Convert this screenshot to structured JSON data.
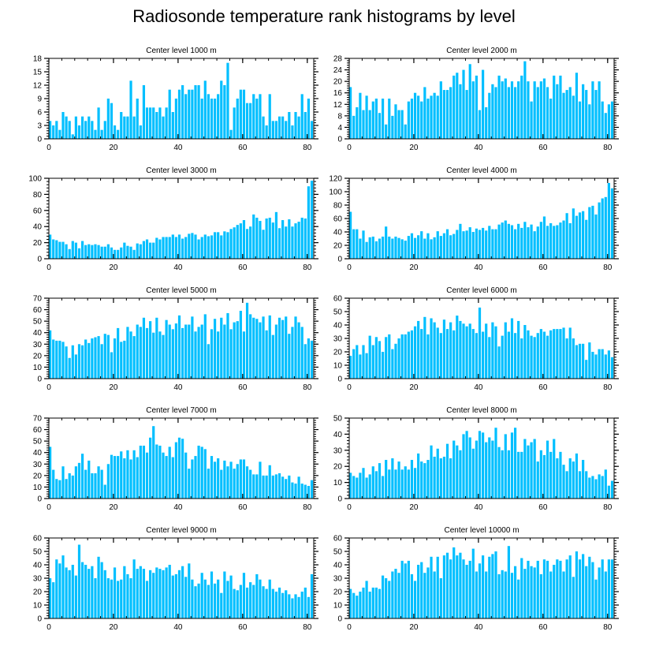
{
  "title": "Radiosonde temperature rank histograms by level",
  "colors": {
    "bar": "#00BFFF",
    "axis": "#000000",
    "background": "#FFFFFF"
  },
  "chart_data": [
    {
      "type": "bar",
      "title": "Center level 1000 m",
      "xlabel": "",
      "ylabel": "",
      "xlim": [
        0,
        82
      ],
      "ylim": [
        0,
        18
      ],
      "xticks": [
        0,
        20,
        40,
        60,
        80
      ],
      "yticks": [
        0,
        3,
        6,
        9,
        12,
        15,
        18
      ],
      "values": [
        4,
        3,
        4,
        2,
        6,
        5,
        4,
        1,
        5,
        3,
        5,
        4,
        5,
        4,
        2,
        7,
        2,
        4,
        9,
        8,
        3,
        2,
        6,
        5,
        5,
        13,
        5,
        9,
        3,
        12,
        7,
        7,
        7,
        6,
        7,
        5,
        7,
        11,
        6,
        9,
        11,
        12,
        10,
        11,
        11,
        12,
        12,
        9,
        13,
        10,
        9,
        9,
        10,
        13,
        12,
        17,
        2,
        7,
        9,
        11,
        11,
        8,
        8,
        10,
        9,
        10,
        5,
        3,
        10,
        4,
        4,
        5,
        5,
        4,
        6,
        3,
        6,
        5,
        10,
        6,
        9,
        4
      ]
    },
    {
      "type": "bar",
      "title": "Center level 2000 m",
      "xlabel": "",
      "ylabel": "",
      "xlim": [
        0,
        82
      ],
      "ylim": [
        0,
        28
      ],
      "xticks": [
        0,
        20,
        40,
        60,
        80
      ],
      "yticks": [
        0,
        4,
        8,
        12,
        16,
        20,
        24,
        28
      ],
      "values": [
        18,
        8,
        11,
        16,
        10,
        15,
        10,
        13,
        14,
        9,
        14,
        5,
        14,
        8,
        12,
        10,
        10,
        5,
        13,
        14,
        16,
        15,
        13,
        18,
        14,
        15,
        16,
        15,
        20,
        17,
        17,
        18,
        22,
        23,
        19,
        24,
        17,
        26,
        20,
        22,
        10,
        24,
        11,
        16,
        19,
        18,
        22,
        20,
        21,
        18,
        20,
        18,
        20,
        22,
        27,
        20,
        13,
        20,
        18,
        20,
        21,
        18,
        14,
        22,
        19,
        22,
        16,
        17,
        18,
        15,
        23,
        13,
        19,
        17,
        12,
        20,
        17,
        20,
        13,
        9,
        12,
        13
      ]
    },
    {
      "type": "bar",
      "title": "Center level 3000 m",
      "xlabel": "",
      "ylabel": "",
      "xlim": [
        0,
        82
      ],
      "ylim": [
        0,
        100
      ],
      "xticks": [
        0,
        20,
        40,
        60,
        80
      ],
      "yticks": [
        0,
        20,
        40,
        60,
        80,
        100
      ],
      "values": [
        30,
        24,
        23,
        21,
        21,
        18,
        12,
        22,
        20,
        13,
        22,
        17,
        18,
        17,
        18,
        17,
        15,
        15,
        18,
        14,
        11,
        11,
        14,
        20,
        16,
        15,
        11,
        19,
        18,
        22,
        24,
        20,
        20,
        26,
        24,
        27,
        27,
        27,
        30,
        27,
        30,
        25,
        27,
        31,
        32,
        30,
        24,
        27,
        30,
        28,
        29,
        33,
        33,
        29,
        34,
        33,
        37,
        39,
        42,
        44,
        48,
        37,
        40,
        55,
        51,
        47,
        36,
        50,
        51,
        45,
        58,
        38,
        48,
        40,
        49,
        40,
        44,
        46,
        51,
        50,
        90,
        97
      ]
    },
    {
      "type": "bar",
      "title": "Center level 4000 m",
      "xlabel": "",
      "ylabel": "",
      "xlim": [
        0,
        82
      ],
      "ylim": [
        0,
        120
      ],
      "xticks": [
        0,
        20,
        40,
        60,
        80
      ],
      "yticks": [
        0,
        20,
        40,
        60,
        80,
        100,
        120
      ],
      "values": [
        70,
        44,
        44,
        30,
        42,
        25,
        32,
        33,
        26,
        30,
        33,
        48,
        33,
        30,
        33,
        31,
        29,
        27,
        34,
        38,
        31,
        35,
        41,
        30,
        38,
        29,
        32,
        41,
        34,
        38,
        44,
        35,
        37,
        43,
        52,
        41,
        42,
        47,
        40,
        45,
        43,
        46,
        42,
        49,
        44,
        44,
        51,
        54,
        57,
        52,
        50,
        44,
        52,
        46,
        55,
        47,
        51,
        41,
        48,
        55,
        63,
        49,
        53,
        49,
        50,
        54,
        57,
        68,
        53,
        75,
        64,
        69,
        71,
        58,
        77,
        79,
        66,
        84,
        90,
        92,
        113,
        105
      ]
    },
    {
      "type": "bar",
      "title": "Center level 5000 m",
      "xlabel": "",
      "ylabel": "",
      "xlim": [
        0,
        82
      ],
      "ylim": [
        0,
        70
      ],
      "xticks": [
        0,
        20,
        40,
        60,
        80
      ],
      "yticks": [
        0,
        10,
        20,
        30,
        40,
        50,
        60,
        70
      ],
      "values": [
        42,
        34,
        33,
        33,
        32,
        28,
        18,
        29,
        21,
        30,
        29,
        34,
        31,
        35,
        36,
        37,
        30,
        39,
        38,
        23,
        35,
        44,
        32,
        33,
        45,
        41,
        37,
        47,
        45,
        53,
        44,
        50,
        40,
        53,
        41,
        38,
        51,
        47,
        43,
        48,
        55,
        44,
        47,
        47,
        54,
        41,
        45,
        47,
        56,
        30,
        43,
        52,
        41,
        53,
        47,
        57,
        43,
        49,
        50,
        59,
        41,
        66,
        56,
        53,
        52,
        49,
        54,
        42,
        55,
        38,
        47,
        53,
        51,
        54,
        39,
        45,
        54,
        49,
        45,
        30,
        35,
        33
      ]
    },
    {
      "type": "bar",
      "title": "Center level 6000 m",
      "xlabel": "",
      "ylabel": "",
      "xlim": [
        0,
        82
      ],
      "ylim": [
        0,
        60
      ],
      "xticks": [
        0,
        20,
        40,
        60,
        80
      ],
      "yticks": [
        0,
        10,
        20,
        30,
        40,
        50,
        60
      ],
      "values": [
        17,
        22,
        25,
        18,
        25,
        19,
        32,
        25,
        31,
        28,
        20,
        31,
        33,
        22,
        26,
        30,
        33,
        33,
        35,
        36,
        39,
        43,
        37,
        46,
        33,
        45,
        42,
        38,
        34,
        44,
        37,
        42,
        36,
        47,
        43,
        41,
        39,
        41,
        37,
        34,
        53,
        35,
        41,
        31,
        42,
        39,
        24,
        32,
        42,
        35,
        45,
        34,
        43,
        30,
        40,
        36,
        32,
        31,
        34,
        37,
        35,
        32,
        36,
        37,
        37,
        37,
        38,
        30,
        38,
        30,
        25,
        26,
        26,
        14,
        27,
        20,
        18,
        22,
        22,
        18,
        21,
        16
      ]
    },
    {
      "type": "bar",
      "title": "Center level 7000 m",
      "xlabel": "",
      "ylabel": "",
      "xlim": [
        0,
        82
      ],
      "ylim": [
        0,
        70
      ],
      "xticks": [
        0,
        20,
        40,
        60,
        80
      ],
      "yticks": [
        0,
        10,
        20,
        30,
        40,
        50,
        60,
        70
      ],
      "values": [
        45,
        25,
        17,
        16,
        28,
        17,
        22,
        20,
        28,
        31,
        39,
        25,
        33,
        22,
        22,
        28,
        25,
        12,
        30,
        38,
        37,
        37,
        41,
        35,
        42,
        34,
        42,
        36,
        46,
        46,
        40,
        53,
        63,
        47,
        46,
        40,
        37,
        45,
        36,
        49,
        53,
        52,
        40,
        26,
        34,
        37,
        46,
        45,
        43,
        26,
        37,
        32,
        35,
        25,
        33,
        28,
        32,
        26,
        30,
        34,
        34,
        28,
        25,
        21,
        21,
        32,
        20,
        20,
        29,
        20,
        21,
        22,
        19,
        17,
        20,
        14,
        13,
        19,
        13,
        12,
        11,
        16
      ]
    },
    {
      "type": "bar",
      "title": "Center level 8000 m",
      "xlabel": "",
      "ylabel": "",
      "xlim": [
        0,
        82
      ],
      "ylim": [
        0,
        50
      ],
      "xticks": [
        0,
        20,
        40,
        60,
        80
      ],
      "yticks": [
        0,
        10,
        20,
        30,
        40,
        50
      ],
      "values": [
        16,
        14,
        13,
        16,
        19,
        13,
        15,
        20,
        17,
        22,
        14,
        24,
        18,
        25,
        18,
        23,
        18,
        20,
        18,
        24,
        19,
        28,
        23,
        22,
        24,
        33,
        26,
        31,
        25,
        26,
        34,
        25,
        36,
        33,
        30,
        40,
        42,
        38,
        31,
        36,
        42,
        41,
        35,
        38,
        36,
        44,
        32,
        30,
        40,
        30,
        41,
        44,
        29,
        29,
        37,
        33,
        35,
        37,
        23,
        30,
        27,
        36,
        29,
        37,
        25,
        29,
        21,
        17,
        25,
        23,
        28,
        17,
        24,
        17,
        13,
        14,
        12,
        15,
        14,
        18,
        8,
        11
      ]
    },
    {
      "type": "bar",
      "title": "Center level 9000 m",
      "xlabel": "",
      "ylabel": "",
      "xlim": [
        0,
        82
      ],
      "ylim": [
        0,
        60
      ],
      "xticks": [
        0,
        20,
        40,
        60,
        80
      ],
      "yticks": [
        0,
        10,
        20,
        30,
        40,
        50,
        60
      ],
      "values": [
        30,
        27,
        44,
        41,
        47,
        38,
        36,
        40,
        32,
        55,
        42,
        40,
        37,
        39,
        30,
        46,
        42,
        36,
        30,
        29,
        38,
        28,
        29,
        39,
        33,
        30,
        44,
        37,
        39,
        37,
        28,
        36,
        34,
        38,
        37,
        36,
        38,
        40,
        32,
        33,
        36,
        39,
        31,
        41,
        29,
        24,
        26,
        34,
        29,
        25,
        35,
        26,
        29,
        19,
        35,
        28,
        32,
        22,
        21,
        25,
        34,
        23,
        27,
        25,
        33,
        29,
        24,
        22,
        29,
        22,
        20,
        23,
        19,
        21,
        18,
        15,
        18,
        16,
        20,
        23,
        16,
        33
      ]
    },
    {
      "type": "bar",
      "title": "Center level 10000 m",
      "xlabel": "",
      "ylabel": "",
      "xlim": [
        0,
        82
      ],
      "ylim": [
        0,
        60
      ],
      "xticks": [
        0,
        20,
        40,
        60,
        80
      ],
      "yticks": [
        0,
        10,
        20,
        30,
        40,
        50,
        60
      ],
      "values": [
        22,
        19,
        17,
        20,
        23,
        28,
        20,
        23,
        23,
        22,
        32,
        30,
        28,
        35,
        37,
        34,
        43,
        41,
        43,
        33,
        28,
        40,
        42,
        34,
        38,
        46,
        35,
        46,
        30,
        47,
        49,
        44,
        53,
        47,
        49,
        44,
        40,
        43,
        52,
        35,
        41,
        47,
        35,
        46,
        48,
        50,
        33,
        36,
        35,
        54,
        34,
        39,
        29,
        45,
        37,
        43,
        39,
        38,
        43,
        33,
        44,
        43,
        35,
        40,
        44,
        43,
        35,
        44,
        47,
        31,
        50,
        44,
        48,
        39,
        46,
        42,
        29,
        38,
        44,
        35,
        44,
        44
      ]
    }
  ]
}
